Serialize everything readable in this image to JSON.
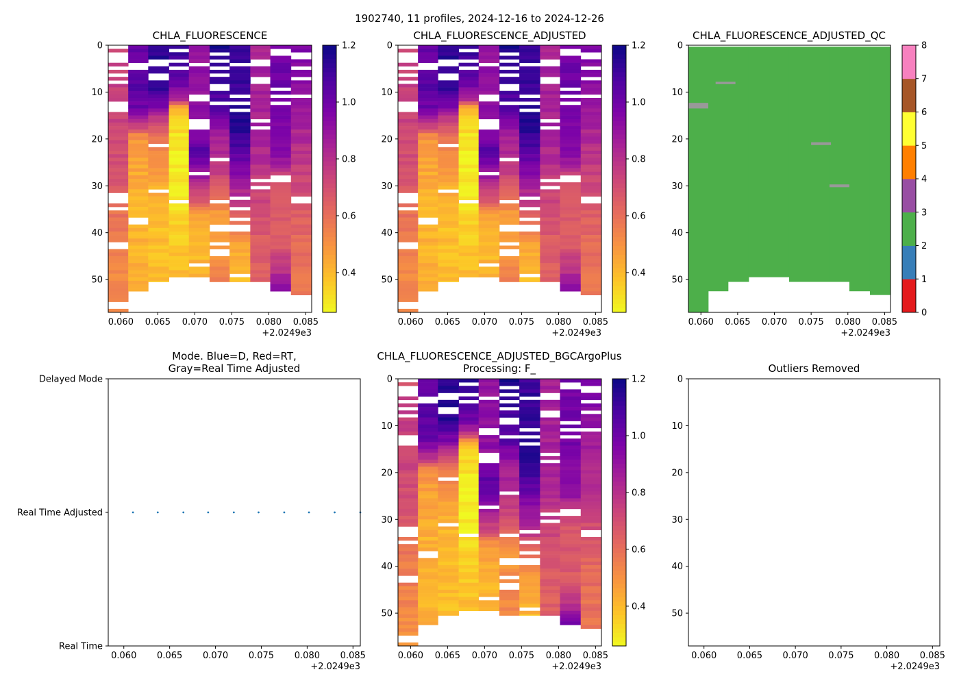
{
  "figure": {
    "suptitle": "1902740, 11 profiles, 2024-12-16 to 2024-12-26",
    "x_ticks": [
      "0.060",
      "0.065",
      "0.070",
      "0.075",
      "0.080",
      "0.085"
    ],
    "x_tick_values": [
      0.06,
      0.065,
      0.07,
      0.075,
      0.08,
      0.085
    ],
    "x_offset_label": "+2.0249e3",
    "x_range": [
      0.0583,
      0.0858
    ],
    "y_ticks": [
      "0",
      "10",
      "20",
      "30",
      "40",
      "50"
    ],
    "y_tick_values": [
      0,
      10,
      20,
      30,
      40,
      50
    ],
    "y_range_depth": [
      0,
      57
    ],
    "colorbar_ticks": [
      "0.4",
      "0.6",
      "0.8",
      "1.0",
      "1.2"
    ],
    "colorbar_tick_values": [
      0.4,
      0.6,
      0.8,
      1.0,
      1.2
    ],
    "colorbar_range": [
      0.26,
      1.2
    ],
    "qc_ticks": [
      "0",
      "1",
      "2",
      "3",
      "4",
      "5",
      "6",
      "7",
      "8"
    ],
    "qc_colors": [
      "#e41a1c",
      "#377eb8",
      "#4daf4a",
      "#984ea3",
      "#ff7f00",
      "#ffff33",
      "#a65628",
      "#f781bf",
      "#999999"
    ],
    "mode_ticks": [
      "Delayed Mode",
      "Real Time Adjusted",
      "Real Time"
    ]
  },
  "panels": {
    "p1": {
      "title": "CHLA_FLUORESCENCE"
    },
    "p2": {
      "title": "CHLA_FLUORESCENCE_ADJUSTED"
    },
    "p3": {
      "title": "CHLA_FLUORESCENCE_ADJUSTED_QC"
    },
    "p4": {
      "title_line1": "Mode. Blue=D, Red=RT,",
      "title_line2": "Gray=Real Time Adjusted"
    },
    "p5": {
      "title_line1": "CHLA_FLUORESCENCE_ADJUSTED_BGCArgoPlus",
      "title_line2": "Processing: F_"
    },
    "p6": {
      "title": "Outliers Removed"
    }
  },
  "chart_data": [
    {
      "type": "heatmap",
      "title": "CHLA_FLUORESCENCE",
      "xlabel": "",
      "ylabel": "",
      "colormap": "plasma_r",
      "profiles": [
        {
          "x0": 0.0583,
          "x1": 0.061,
          "max_depth": 57,
          "profile": [
            [
              0,
              0.68
            ],
            [
              5,
              0.75
            ],
            [
              12,
              0.75
            ],
            [
              20,
              0.72
            ],
            [
              30,
              0.68
            ],
            [
              36,
              0.58
            ],
            [
              44,
              0.55
            ],
            [
              52,
              0.52
            ],
            [
              57,
              0.52
            ]
          ],
          "gaps": [
            0.5,
            1.5,
            2.5,
            3.5,
            5,
            6,
            8,
            12,
            12.8,
            13.6,
            31.5,
            32.5,
            33.5,
            34.5,
            42,
            43,
            55,
            56
          ]
        },
        {
          "x0": 0.061,
          "x1": 0.0637,
          "max_depth": 52.5,
          "profile": [
            [
              0,
              1.0
            ],
            [
              8,
              1.05
            ],
            [
              13,
              1.0
            ],
            [
              17,
              0.75
            ],
            [
              19,
              0.5
            ],
            [
              25,
              0.45
            ],
            [
              35,
              0.42
            ],
            [
              45,
              0.42
            ],
            [
              52.5,
              0.42
            ]
          ],
          "gaps": [
            4,
            5,
            37,
            38
          ]
        },
        {
          "x0": 0.0637,
          "x1": 0.0665,
          "max_depth": 50.5,
          "profile": [
            [
              0,
              1.15
            ],
            [
              8,
              1.15
            ],
            [
              13,
              0.95
            ],
            [
              16,
              0.72
            ],
            [
              20,
              0.55
            ],
            [
              28,
              0.45
            ],
            [
              35,
              0.4
            ],
            [
              50.5,
              0.38
            ]
          ],
          "gaps": [
            3,
            4,
            6,
            6.8,
            21.5,
            31
          ]
        },
        {
          "x0": 0.0665,
          "x1": 0.0692,
          "max_depth": 49.5,
          "profile": [
            [
              0,
              1.15
            ],
            [
              8,
              1.0
            ],
            [
              11,
              0.85
            ],
            [
              13,
              0.45
            ],
            [
              16,
              0.33
            ],
            [
              25,
              0.28
            ],
            [
              33,
              0.3
            ],
            [
              40,
              0.36
            ],
            [
              49.5,
              0.4
            ]
          ],
          "gaps": [
            1,
            3,
            5,
            33.6
          ]
        },
        {
          "x0": 0.0692,
          "x1": 0.072,
          "max_depth": 49.5,
          "profile": [
            [
              0,
              0.9
            ],
            [
              10,
              0.92
            ],
            [
              17,
              0.92
            ],
            [
              22,
              1.05
            ],
            [
              27,
              0.9
            ],
            [
              32,
              0.72
            ],
            [
              35,
              0.5
            ],
            [
              40,
              0.42
            ],
            [
              49.5,
              0.4
            ]
          ],
          "gaps": [
            4,
            10.8,
            11.5,
            16,
            16.8,
            17.6,
            27,
            47
          ]
        },
        {
          "x0": 0.072,
          "x1": 0.0747,
          "max_depth": 50.5,
          "profile": [
            [
              0,
              1.2
            ],
            [
              7,
              1.1
            ],
            [
              13,
              1.05
            ],
            [
              17,
              0.9
            ],
            [
              25,
              0.78
            ],
            [
              30,
              0.68
            ],
            [
              35,
              0.5
            ],
            [
              42,
              0.5
            ],
            [
              50.5,
              0.55
            ]
          ],
          "gaps": [
            2,
            3.2,
            5,
            6.5,
            8.5,
            9.5,
            12,
            24.5,
            33.5,
            38.5,
            39.5,
            42,
            43.5,
            44.5
          ]
        },
        {
          "x0": 0.0747,
          "x1": 0.0775,
          "max_depth": 50.5,
          "profile": [
            [
              0,
              1.12
            ],
            [
              10,
              1.12
            ],
            [
              17,
              1.18
            ],
            [
              22,
              1.05
            ],
            [
              28,
              0.9
            ],
            [
              32,
              0.8
            ],
            [
              36,
              0.65
            ],
            [
              42,
              0.45
            ],
            [
              50.5,
              0.4
            ]
          ],
          "gaps": [
            4,
            10.5,
            12,
            13.5,
            32.8,
            35,
            37.2,
            38.5,
            39.5,
            49
          ]
        },
        {
          "x0": 0.0775,
          "x1": 0.0802,
          "max_depth": 50.5,
          "profile": [
            [
              0,
              0.85
            ],
            [
              10,
              0.85
            ],
            [
              18,
              0.85
            ],
            [
              25,
              0.8
            ],
            [
              30,
              0.75
            ],
            [
              35,
              0.7
            ],
            [
              42,
              0.65
            ],
            [
              50.5,
              0.65
            ]
          ],
          "gaps": [
            3,
            4,
            7,
            8,
            16,
            17.5,
            29,
            30.5
          ]
        },
        {
          "x0": 0.0802,
          "x1": 0.083,
          "max_depth": 52.5,
          "profile": [
            [
              0,
              0.98
            ],
            [
              10,
              1.0
            ],
            [
              18,
              0.95
            ],
            [
              25,
              0.9
            ],
            [
              28,
              0.7
            ],
            [
              35,
              0.68
            ],
            [
              42,
              0.67
            ],
            [
              48,
              0.8
            ],
            [
              52.5,
              1.0
            ]
          ],
          "gaps": [
            1,
            2,
            9.5,
            11,
            12.5,
            28,
            29
          ]
        },
        {
          "x0": 0.083,
          "x1": 0.0858,
          "max_depth": 53.3,
          "profile": [
            [
              0,
              0.98
            ],
            [
              10,
              0.9
            ],
            [
              20,
              0.82
            ],
            [
              30,
              0.72
            ],
            [
              40,
              0.62
            ],
            [
              53.3,
              0.58
            ]
          ],
          "gaps": [
            1.5,
            2.5,
            5,
            7,
            10.5,
            11.2,
            32.5,
            33.2
          ]
        }
      ],
      "colorbar": {
        "range": [
          0.26,
          1.2
        ],
        "ticks": [
          0.4,
          0.6,
          0.8,
          1.0,
          1.2
        ]
      }
    },
    {
      "type": "heatmap",
      "title": "CHLA_FLUORESCENCE_ADJUSTED",
      "xlabel": "",
      "ylabel": "",
      "colormap": "plasma_r",
      "same_profiles_as": "CHLA_FLUORESCENCE",
      "colorbar": {
        "range": [
          0.26,
          1.2
        ],
        "ticks": [
          0.4,
          0.6,
          0.8,
          1.0,
          1.2
        ]
      }
    },
    {
      "type": "heatmap",
      "title": "CHLA_FLUORESCENCE_ADJUSTED_QC",
      "xlabel": "",
      "ylabel": "",
      "colormap": "categorical_qc",
      "base_qc": 2,
      "qc3_special": [
        {
          "x0": 0.0583,
          "x1": 0.061,
          "y0": 12.3,
          "y1": 13.5,
          "qc": 8
        },
        {
          "x0": 0.062,
          "x1": 0.0647,
          "y0": 7.8,
          "y1": 8.3,
          "qc": 8
        },
        {
          "x0": 0.075,
          "x1": 0.0777,
          "y0": 20.7,
          "y1": 21.3,
          "qc": 8
        },
        {
          "x0": 0.0775,
          "x1": 0.0802,
          "y0": 29.7,
          "y1": 30.3,
          "qc": 8
        }
      ],
      "colorbar": {
        "range": [
          0,
          8
        ],
        "ticks": [
          0,
          1,
          2,
          3,
          4,
          5,
          6,
          7,
          8
        ]
      }
    },
    {
      "type": "scatter",
      "title": "Mode. Blue=D, Red=RT, Gray=Real Time Adjusted",
      "xlabel": "",
      "ylabel": "",
      "y_categories": [
        "Real Time",
        "Real Time Adjusted",
        "Delayed Mode"
      ],
      "x": [
        0.061,
        0.0637,
        0.0665,
        0.0692,
        0.072,
        0.0747,
        0.0775,
        0.0802,
        0.083,
        0.0858
      ],
      "y": [
        "Real Time Adjusted",
        "Real Time Adjusted",
        "Real Time Adjusted",
        "Real Time Adjusted",
        "Real Time Adjusted",
        "Real Time Adjusted",
        "Real Time Adjusted",
        "Real Time Adjusted",
        "Real Time Adjusted",
        "Real Time Adjusted"
      ],
      "marker_color": "#1f77b4"
    },
    {
      "type": "heatmap",
      "title": "CHLA_FLUORESCENCE_ADJUSTED_BGCArgoPlus Processing: F_",
      "xlabel": "",
      "ylabel": "",
      "colormap": "plasma_r",
      "same_profiles_as": "CHLA_FLUORESCENCE",
      "colorbar": {
        "range": [
          0.26,
          1.2
        ],
        "ticks": [
          0.4,
          0.6,
          0.8,
          1.0,
          1.2
        ]
      }
    },
    {
      "type": "scatter",
      "title": "Outliers Removed",
      "xlabel": "",
      "ylabel": "",
      "x": [],
      "y": []
    }
  ]
}
